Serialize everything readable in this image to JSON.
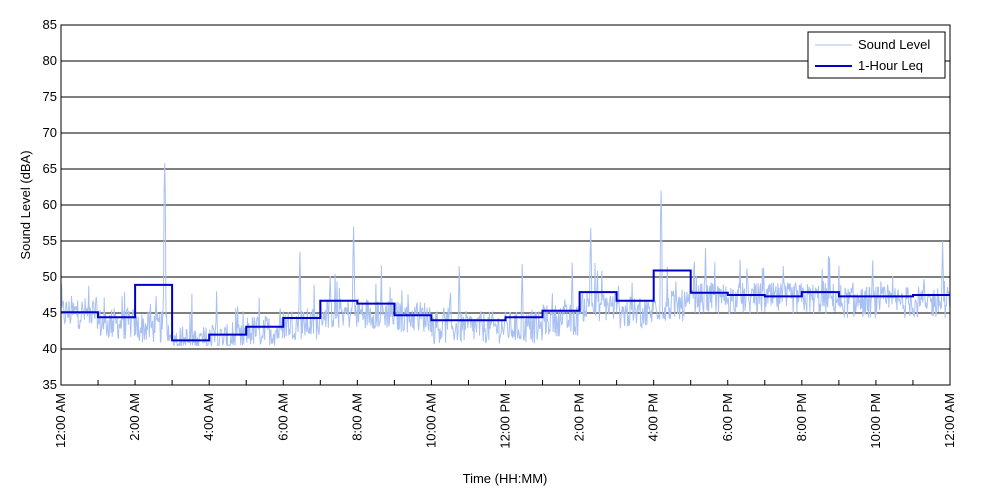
{
  "chart_data": {
    "type": "line",
    "title": "",
    "xlabel": "Time (HH:MM)",
    "ylabel": "Sound Level (dBA)",
    "ylim": [
      35,
      85
    ],
    "yticks": [
      35,
      40,
      45,
      50,
      55,
      60,
      65,
      70,
      75,
      80,
      85
    ],
    "xlim_hours": [
      0,
      24
    ],
    "xtick_labels": [
      "12:00 AM",
      "2:00 AM",
      "4:00 AM",
      "6:00 AM",
      "8:00 AM",
      "10:00 AM",
      "12:00 PM",
      "2:00 PM",
      "4:00 PM",
      "6:00 PM",
      "8:00 PM",
      "10:00 PM",
      "12:00 AM"
    ],
    "grid": "horizontal",
    "legend_position": "top-right",
    "legend": [
      "Sound Level",
      "1-Hour Leq"
    ],
    "series": [
      {
        "name": "Sound Level",
        "color": "#a9c1f2",
        "note_values": "approximate per-hour baseline levels (dBA); trace fluctuates around these",
        "hourly_baseline": [
          45,
          43.5,
          43,
          41,
          41.2,
          42.5,
          43.5,
          45,
          45,
          44.5,
          43,
          43,
          43,
          44,
          46,
          45,
          46,
          47,
          47,
          47,
          47,
          46.5,
          46.5,
          46.5
        ],
        "peaks": [
          {
            "x": 2.8,
            "y": 65.8
          },
          {
            "x": 4.2,
            "y": 48
          },
          {
            "x": 6.45,
            "y": 53.5
          },
          {
            "x": 7.9,
            "y": 57
          },
          {
            "x": 10.75,
            "y": 51.5
          },
          {
            "x": 12.45,
            "y": 51.8
          },
          {
            "x": 13.8,
            "y": 52
          },
          {
            "x": 14.3,
            "y": 56.8
          },
          {
            "x": 16.2,
            "y": 62
          },
          {
            "x": 17.4,
            "y": 54
          },
          {
            "x": 23.8,
            "y": 55
          }
        ]
      },
      {
        "name": "1-Hour Leq",
        "color": "#0000cc",
        "x_hours": [
          0,
          1,
          2,
          3,
          4,
          5,
          6,
          7,
          8,
          9,
          10,
          11,
          12,
          13,
          14,
          15,
          16,
          17,
          18,
          19,
          20,
          21,
          22,
          23
        ],
        "values": [
          45.1,
          44.4,
          48.9,
          41.2,
          42.0,
          43.1,
          44.3,
          46.7,
          46.3,
          44.7,
          44.0,
          44.0,
          44.4,
          45.3,
          47.9,
          46.7,
          50.9,
          47.8,
          47.5,
          47.3,
          47.9,
          47.3,
          47.3,
          47.5
        ]
      }
    ]
  }
}
